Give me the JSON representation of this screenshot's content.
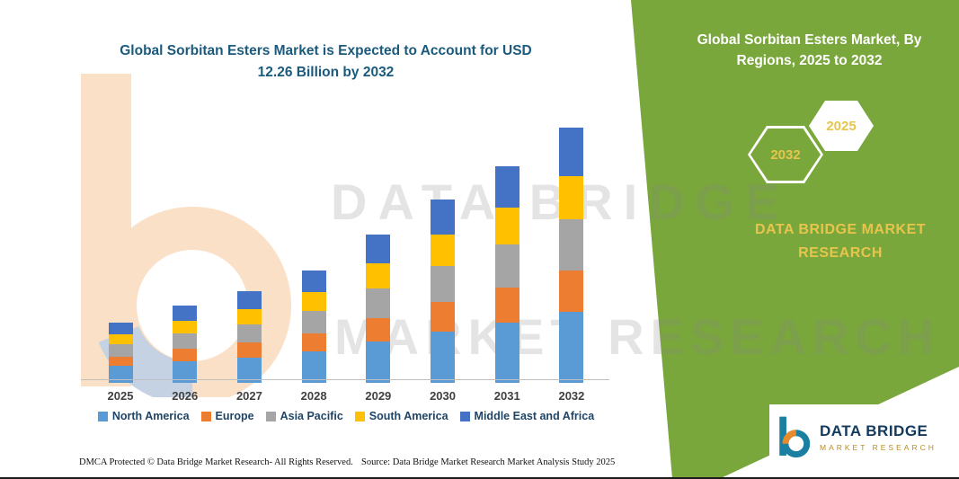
{
  "header": {
    "title_line1": "Global Sorbitan Esters Market is Expected to Account for USD",
    "title_line2": "12.26 Billion by 2032"
  },
  "right_panel": {
    "heading_line1": "Global Sorbitan Esters Market, By",
    "heading_line2": "Regions, 2025 to 2032",
    "hexagon_left": "2032",
    "hexagon_right": "2025",
    "brand_line1": "DATA BRIDGE MARKET",
    "brand_line2": "RESEARCH",
    "panel_color": "#7aa73c",
    "accent_gold": "#e7c54d"
  },
  "watermark": {
    "line1": "DATA BRIDGE",
    "line2": "MARKET RESEARCH"
  },
  "chart_data": {
    "type": "bar",
    "stacked": true,
    "title": "Global Sorbitan Esters Market is Expected to Account for USD 12.26 Billion by 2032",
    "unit": "USD Billion",
    "categories": [
      "2025",
      "2026",
      "2027",
      "2028",
      "2029",
      "2030",
      "2031",
      "2032"
    ],
    "series": [
      {
        "name": "North America",
        "color": "#5B9BD5",
        "values": [
          0.81,
          1.04,
          1.23,
          1.51,
          1.99,
          2.46,
          2.91,
          3.43
        ]
      },
      {
        "name": "Europe",
        "color": "#ED7D31",
        "values": [
          0.46,
          0.59,
          0.7,
          0.86,
          1.14,
          1.41,
          1.66,
          1.96
        ]
      },
      {
        "name": "Asia Pacific",
        "color": "#A5A5A5",
        "values": [
          0.58,
          0.74,
          0.88,
          1.08,
          1.42,
          1.76,
          2.08,
          2.45
        ]
      },
      {
        "name": "South America",
        "color": "#FFC000",
        "values": [
          0.49,
          0.63,
          0.75,
          0.92,
          1.21,
          1.5,
          1.77,
          2.08
        ]
      },
      {
        "name": "Middle East and Africa",
        "color": "#4472C4",
        "values": [
          0.55,
          0.7,
          0.84,
          1.03,
          1.35,
          1.67,
          1.98,
          2.34
        ]
      }
    ],
    "totals": [
      2.89,
      3.7,
      4.4,
      5.4,
      7.11,
      8.8,
      10.4,
      12.26
    ],
    "ylim": [
      0,
      12.26
    ],
    "grid": false,
    "legend_position": "bottom"
  },
  "footer": {
    "dmca": "DMCA Protected © Data Bridge Market Research-  All Rights Reserved.",
    "source": "Source: Data Bridge Market Research  Market Analysis Study 2025"
  },
  "logo": {
    "name": "DATA BRIDGE",
    "subtitle": "MARKET RESEARCH"
  }
}
